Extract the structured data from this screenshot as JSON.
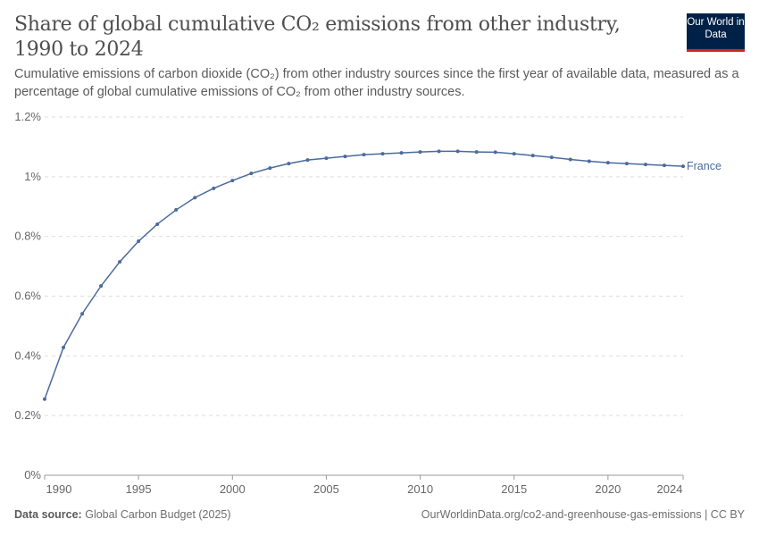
{
  "header": {
    "title": "Share of global cumulative CO₂ emissions from other industry, 1990 to 2024",
    "subtitle": "Cumulative emissions of carbon dioxide (CO₂) from other industry sources since the first year of available data, measured as a percentage of global cumulative emissions of CO₂ from other industry sources.",
    "logo": "Our World in Data"
  },
  "footer": {
    "source_label": "Data source:",
    "source": "Global Carbon Budget (2025)",
    "url": "OurWorldinData.org/co2-and-greenhouse-gas-emissions | CC BY"
  },
  "chart_data": {
    "type": "line",
    "xlabel": "",
    "ylabel": "",
    "ylim": [
      0,
      1.2
    ],
    "xlim": [
      1990,
      2024
    ],
    "grid": "horizontal dashed",
    "y_ticks": [
      "0%",
      "0.2%",
      "0.4%",
      "0.6%",
      "0.8%",
      "1%",
      "1.2%"
    ],
    "y_tick_values": [
      0,
      0.2,
      0.4,
      0.6,
      0.8,
      1.0,
      1.2
    ],
    "x_ticks": [
      "1990",
      "1995",
      "2000",
      "2005",
      "2010",
      "2015",
      "2020",
      "2024"
    ],
    "x_tick_values": [
      1990,
      1995,
      2000,
      2005,
      2010,
      2015,
      2020,
      2024
    ],
    "legend": "line-end label",
    "series": [
      {
        "name": "France",
        "color": "#4c6a9c",
        "x": [
          1990,
          1991,
          1992,
          1993,
          1994,
          1995,
          1996,
          1997,
          1998,
          1999,
          2000,
          2001,
          2002,
          2003,
          2004,
          2005,
          2006,
          2007,
          2008,
          2009,
          2010,
          2011,
          2012,
          2013,
          2014,
          2015,
          2016,
          2017,
          2018,
          2019,
          2020,
          2021,
          2022,
          2023,
          2024
        ],
        "values": [
          0.255,
          0.428,
          0.541,
          0.634,
          0.715,
          0.784,
          0.841,
          0.889,
          0.93,
          0.961,
          0.987,
          1.011,
          1.029,
          1.044,
          1.056,
          1.062,
          1.068,
          1.074,
          1.077,
          1.08,
          1.083,
          1.085,
          1.085,
          1.083,
          1.082,
          1.077,
          1.071,
          1.065,
          1.058,
          1.052,
          1.047,
          1.044,
          1.041,
          1.038,
          1.035
        ]
      }
    ]
  }
}
